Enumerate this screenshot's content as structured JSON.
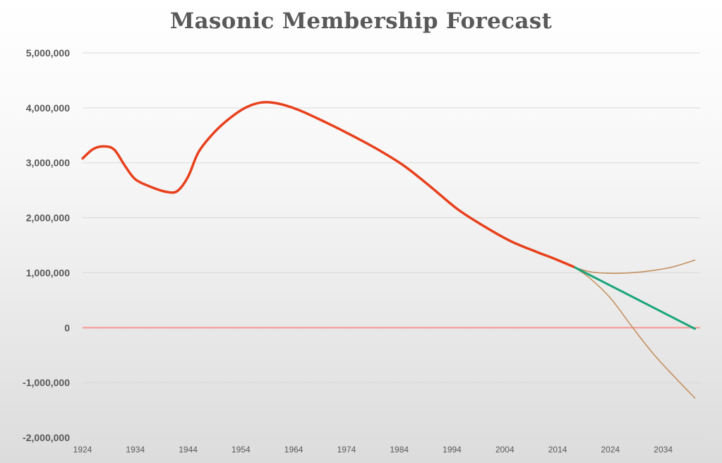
{
  "chart_data": {
    "type": "line",
    "title": "Masonic Membership Forecast",
    "xlabel": "",
    "ylabel": "",
    "xlim": [
      1924,
      2041
    ],
    "ylim": [
      -2000000,
      5000000
    ],
    "x_ticks": [
      1924,
      1934,
      1944,
      1954,
      1964,
      1974,
      1984,
      1994,
      2004,
      2014,
      2024,
      2034
    ],
    "y_ticks": [
      -2000000,
      -1000000,
      0,
      1000000,
      2000000,
      3000000,
      4000000,
      5000000
    ],
    "y_tick_labels": [
      "-2,000,000",
      "-1,000,000",
      "0",
      "1,000,000",
      "2,000,000",
      "3,000,000",
      "4,000,000",
      "5,000,000"
    ],
    "grid": true,
    "legend": "none",
    "zero_line_color": "#f4a6a0",
    "series": [
      {
        "color": "#e8401c",
        "points": [
          [
            1924,
            3080000
          ],
          [
            1926,
            3250000
          ],
          [
            1928,
            3300000
          ],
          [
            1930,
            3240000
          ],
          [
            1932,
            2950000
          ],
          [
            1934,
            2700000
          ],
          [
            1937,
            2560000
          ],
          [
            1940,
            2470000
          ],
          [
            1942,
            2490000
          ],
          [
            1944,
            2750000
          ],
          [
            1946,
            3200000
          ],
          [
            1949,
            3560000
          ],
          [
            1952,
            3820000
          ],
          [
            1955,
            4010000
          ],
          [
            1958,
            4100000
          ],
          [
            1961,
            4080000
          ],
          [
            1965,
            3960000
          ],
          [
            1970,
            3740000
          ],
          [
            1975,
            3500000
          ],
          [
            1980,
            3240000
          ],
          [
            1985,
            2940000
          ],
          [
            1990,
            2560000
          ],
          [
            1995,
            2160000
          ],
          [
            2000,
            1850000
          ],
          [
            2005,
            1580000
          ],
          [
            2010,
            1380000
          ],
          [
            2013,
            1270000
          ],
          [
            2017,
            1110000
          ]
        ]
      },
      {
        "color": "#1aa57a",
        "points": [
          [
            2017,
            1110000
          ],
          [
            2040,
            -20000
          ]
        ]
      },
      {
        "color": "#c49060",
        "points": [
          [
            2017,
            1110000
          ],
          [
            2020,
            1020000
          ],
          [
            2024,
            990000
          ],
          [
            2028,
            1000000
          ],
          [
            2032,
            1040000
          ],
          [
            2036,
            1110000
          ],
          [
            2040,
            1230000
          ]
        ]
      },
      {
        "color": "#c49060",
        "points": [
          [
            2017,
            1110000
          ],
          [
            2020,
            910000
          ],
          [
            2024,
            540000
          ],
          [
            2028,
            30000
          ],
          [
            2032,
            -460000
          ],
          [
            2036,
            -880000
          ],
          [
            2040,
            -1280000
          ]
        ]
      }
    ]
  }
}
